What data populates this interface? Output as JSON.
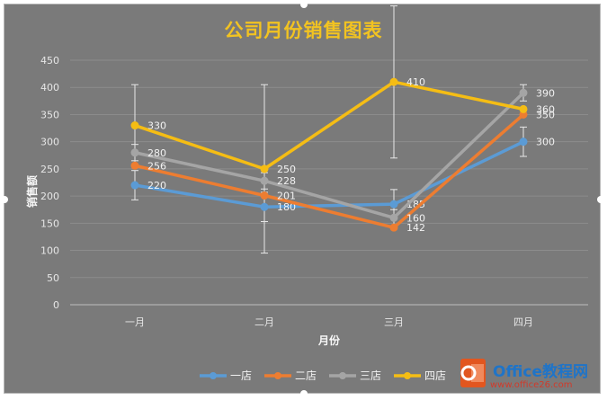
{
  "chart_data": {
    "type": "line",
    "title": "公司月份销售图表",
    "xlabel": "月份",
    "ylabel": "销售额",
    "categories": [
      "一月",
      "二月",
      "三月",
      "四月"
    ],
    "ylim": [
      0,
      450
    ],
    "yticks": [
      0,
      50,
      100,
      150,
      200,
      250,
      300,
      350,
      400,
      450
    ],
    "grid": true,
    "legend_position": "bottom",
    "series": [
      {
        "name": "一店",
        "values": [
          220,
          180,
          185,
          300
        ],
        "color": "#5b9bd5",
        "error": [
          27,
          27,
          27,
          27
        ]
      },
      {
        "name": "二店",
        "values": [
          256,
          201,
          142,
          350
        ],
        "color": "#ed7d31",
        "error": [
          0,
          0,
          0,
          0
        ]
      },
      {
        "name": "三店",
        "values": [
          280,
          228,
          160,
          390
        ],
        "color": "#a5a5a5",
        "error": [
          15,
          15,
          15,
          15
        ]
      },
      {
        "name": "四店",
        "values": [
          330,
          250,
          410,
          360
        ],
        "color": "#f5bd14",
        "error": [
          75,
          155,
          140,
          0
        ]
      }
    ]
  },
  "watermark": {
    "text": "Office教程网",
    "url": "www.office26.com"
  },
  "colors": {
    "background": "#7a7a7a",
    "title": "#f2c321",
    "gridline": "#8c8c8c"
  }
}
